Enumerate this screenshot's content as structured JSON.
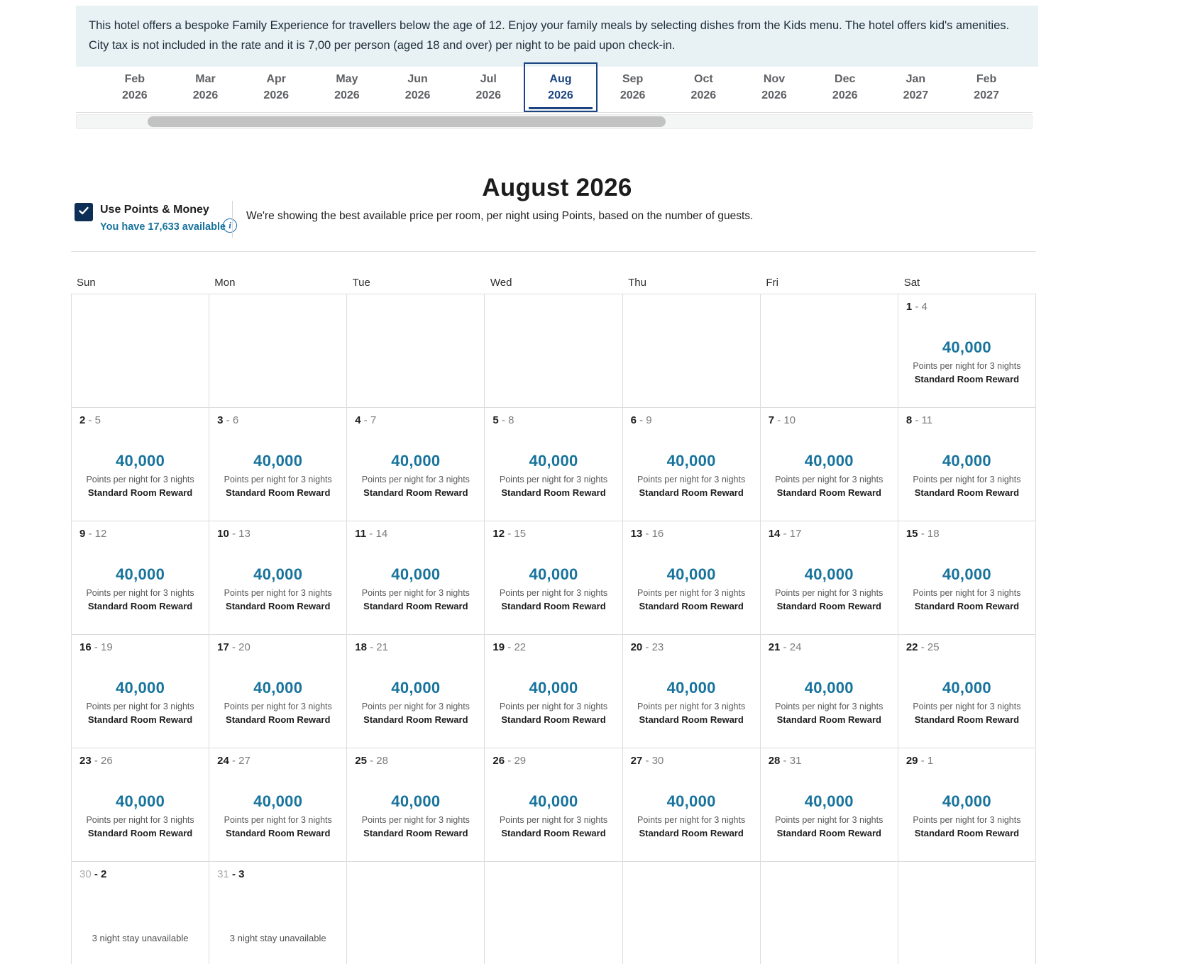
{
  "banner": {
    "text": "This hotel offers a bespoke Family Experience for travellers below the age of 12. Enjoy your family meals by selecting dishes from the Kids menu. The hotel offers kid's amenities. City tax is not included in the rate and it is 7,00 per person (aged 18 and over) per night to be paid upon check-in."
  },
  "month_tabs": [
    {
      "month": "Feb",
      "year": "2026",
      "selected": false
    },
    {
      "month": "Mar",
      "year": "2026",
      "selected": false
    },
    {
      "month": "Apr",
      "year": "2026",
      "selected": false
    },
    {
      "month": "May",
      "year": "2026",
      "selected": false
    },
    {
      "month": "Jun",
      "year": "2026",
      "selected": false
    },
    {
      "month": "Jul",
      "year": "2026",
      "selected": false
    },
    {
      "month": "Aug",
      "year": "2026",
      "selected": true
    },
    {
      "month": "Sep",
      "year": "2026",
      "selected": false
    },
    {
      "month": "Oct",
      "year": "2026",
      "selected": false
    },
    {
      "month": "Nov",
      "year": "2026",
      "selected": false
    },
    {
      "month": "Dec",
      "year": "2026",
      "selected": false
    },
    {
      "month": "Jan",
      "year": "2027",
      "selected": false
    },
    {
      "month": "Feb",
      "year": "2027",
      "selected": false
    }
  ],
  "heading": "August 2026",
  "points_toggle": {
    "checked": true,
    "label": "Use Points & Money",
    "available": "You have 17,633 available",
    "info_icon": "i",
    "description": "We're showing the best available price per room, per night using Points, based on the number of guests."
  },
  "calendar": {
    "day_headers": [
      "Sun",
      "Mon",
      "Tue",
      "Wed",
      "Thu",
      "Fri",
      "Sat"
    ],
    "points_value": "40,000",
    "points_caption": "Points per night for 3 nights",
    "room_label": "Standard Room Reward",
    "unavailable_label": "3 night stay unavailable",
    "weeks": [
      [
        {
          "status": "empty"
        },
        {
          "status": "empty"
        },
        {
          "status": "empty"
        },
        {
          "status": "empty"
        },
        {
          "status": "empty"
        },
        {
          "status": "empty"
        },
        {
          "in": "1",
          "out": "4",
          "status": "available"
        }
      ],
      [
        {
          "in": "2",
          "out": "5",
          "status": "available"
        },
        {
          "in": "3",
          "out": "6",
          "status": "available"
        },
        {
          "in": "4",
          "out": "7",
          "status": "available"
        },
        {
          "in": "5",
          "out": "8",
          "status": "available"
        },
        {
          "in": "6",
          "out": "9",
          "status": "available"
        },
        {
          "in": "7",
          "out": "10",
          "status": "available"
        },
        {
          "in": "8",
          "out": "11",
          "status": "available"
        }
      ],
      [
        {
          "in": "9",
          "out": "12",
          "status": "available"
        },
        {
          "in": "10",
          "out": "13",
          "status": "available"
        },
        {
          "in": "11",
          "out": "14",
          "status": "available"
        },
        {
          "in": "12",
          "out": "15",
          "status": "available"
        },
        {
          "in": "13",
          "out": "16",
          "status": "available"
        },
        {
          "in": "14",
          "out": "17",
          "status": "available"
        },
        {
          "in": "15",
          "out": "18",
          "status": "available"
        }
      ],
      [
        {
          "in": "16",
          "out": "19",
          "status": "available"
        },
        {
          "in": "17",
          "out": "20",
          "status": "available"
        },
        {
          "in": "18",
          "out": "21",
          "status": "available"
        },
        {
          "in": "19",
          "out": "22",
          "status": "available"
        },
        {
          "in": "20",
          "out": "23",
          "status": "available"
        },
        {
          "in": "21",
          "out": "24",
          "status": "available"
        },
        {
          "in": "22",
          "out": "25",
          "status": "available"
        }
      ],
      [
        {
          "in": "23",
          "out": "26",
          "status": "available"
        },
        {
          "in": "24",
          "out": "27",
          "status": "available"
        },
        {
          "in": "25",
          "out": "28",
          "status": "available"
        },
        {
          "in": "26",
          "out": "29",
          "status": "available"
        },
        {
          "in": "27",
          "out": "30",
          "status": "available"
        },
        {
          "in": "28",
          "out": "31",
          "status": "available"
        },
        {
          "in": "29",
          "out": "1",
          "status": "available"
        }
      ],
      [
        {
          "in": "30",
          "out": "2",
          "status": "unavailable"
        },
        {
          "in": "31",
          "out": "3",
          "status": "unavailable"
        },
        {
          "status": "empty"
        },
        {
          "status": "empty"
        },
        {
          "status": "empty"
        },
        {
          "status": "empty"
        },
        {
          "status": "empty"
        }
      ]
    ]
  },
  "colors": {
    "accent_teal": "#17739c",
    "navy": "#1b4481",
    "checkbox_navy": "#0d2f55",
    "banner_bg": "#e8f1f4"
  }
}
